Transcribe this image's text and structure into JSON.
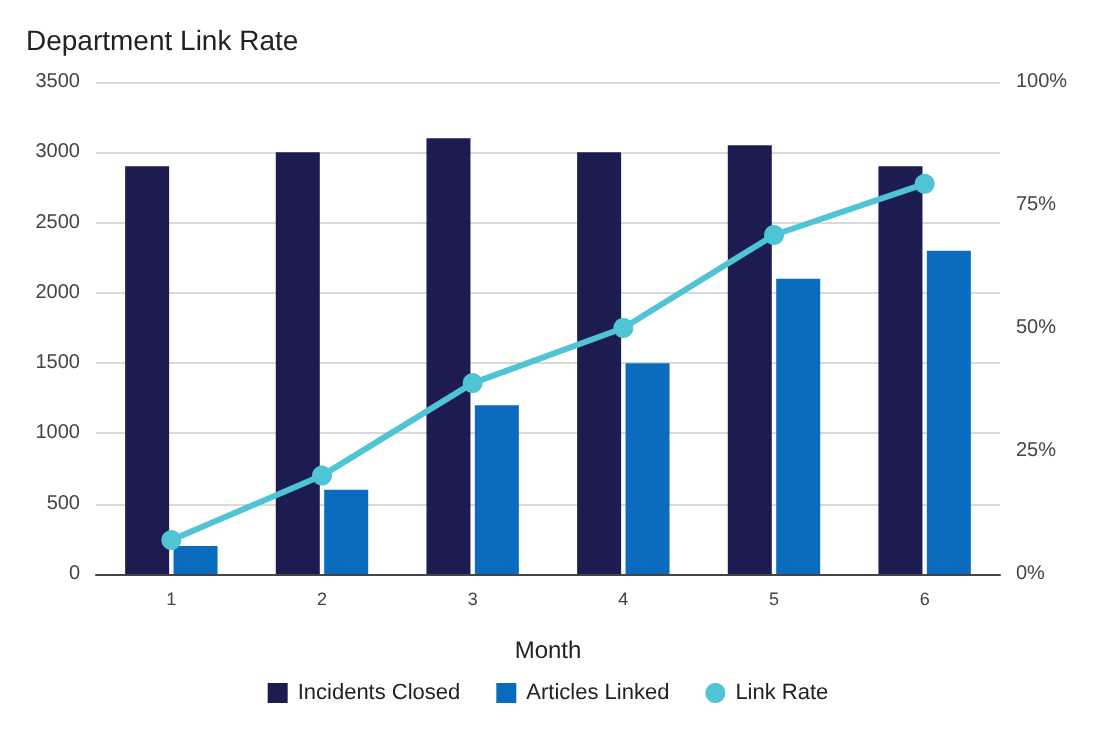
{
  "chart_data": {
    "type": "bar",
    "title": "Department Link Rate",
    "xlabel": "Month",
    "categories": [
      "1",
      "2",
      "3",
      "4",
      "5",
      "6"
    ],
    "series": [
      {
        "name": "Incidents Closed",
        "color": "#1c1c50",
        "values": [
          2900,
          3000,
          3100,
          3000,
          3050,
          2900
        ]
      },
      {
        "name": "Articles Linked",
        "color": "#0b6cbf",
        "values": [
          200,
          600,
          1200,
          1500,
          2100,
          2300
        ]
      },
      {
        "name": "Link Rate",
        "type": "line",
        "axis": "y2",
        "color": "#4fc4d4",
        "values": [
          6.9,
          20,
          38.8,
          50,
          68.9,
          79.3
        ]
      }
    ],
    "ylim": [
      0,
      3500
    ],
    "yticks": [
      0,
      500,
      1000,
      1500,
      2000,
      2500,
      3000,
      3500
    ],
    "y2lim": [
      0,
      100
    ],
    "y2ticks": [
      {
        "value": 0,
        "label": "0%"
      },
      {
        "value": 25,
        "label": "25%"
      },
      {
        "value": 50,
        "label": "50%"
      },
      {
        "value": 75,
        "label": "75%"
      },
      {
        "value": 100,
        "label": "100%"
      }
    ],
    "grid": "y",
    "legend": "bottom",
    "marker": "circle",
    "line_style": "solid"
  }
}
